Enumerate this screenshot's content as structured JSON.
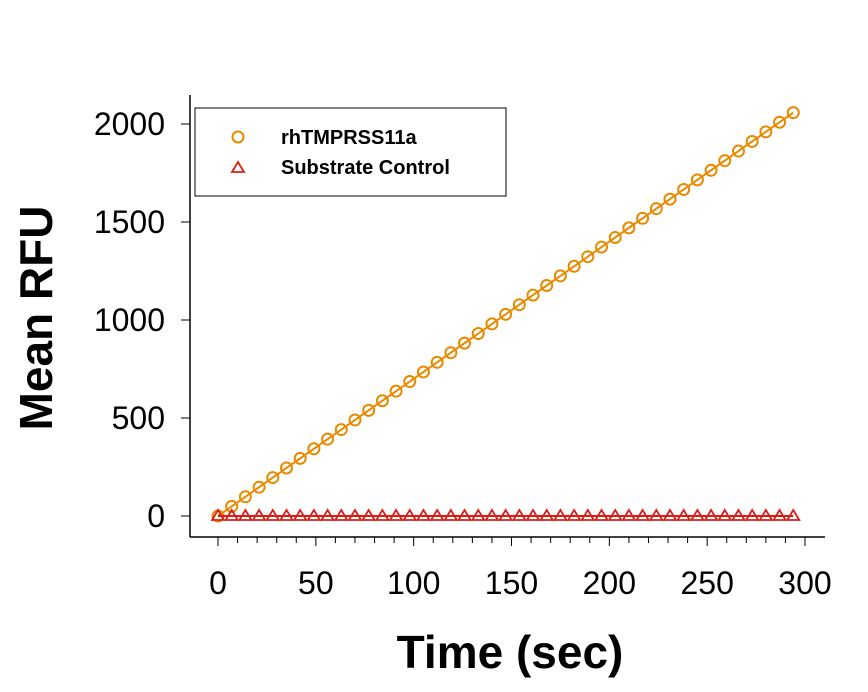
{
  "chart_data": {
    "type": "scatter",
    "title": "",
    "xlabel": "Time (sec)",
    "ylabel": "Mean RFU",
    "xlim": [
      -15,
      310
    ],
    "ylim": [
      -100,
      2200
    ],
    "xticks": [
      0,
      50,
      100,
      150,
      200,
      250,
      300
    ],
    "yticks": [
      0,
      500,
      1000,
      1500,
      2000
    ],
    "grid": false,
    "legend_position": "top-left",
    "series": [
      {
        "name": "rhTMPRSS11a",
        "color": "#E88A00",
        "marker": "circle",
        "slope_per_sec": 7.0,
        "x_start": 0,
        "x_step": 7,
        "x_end": 294
      },
      {
        "name": "Substrate Control",
        "color": "#D91E18",
        "marker": "triangle",
        "constant": 0,
        "x_start": 0,
        "x_step": 7,
        "x_end": 294
      }
    ]
  }
}
